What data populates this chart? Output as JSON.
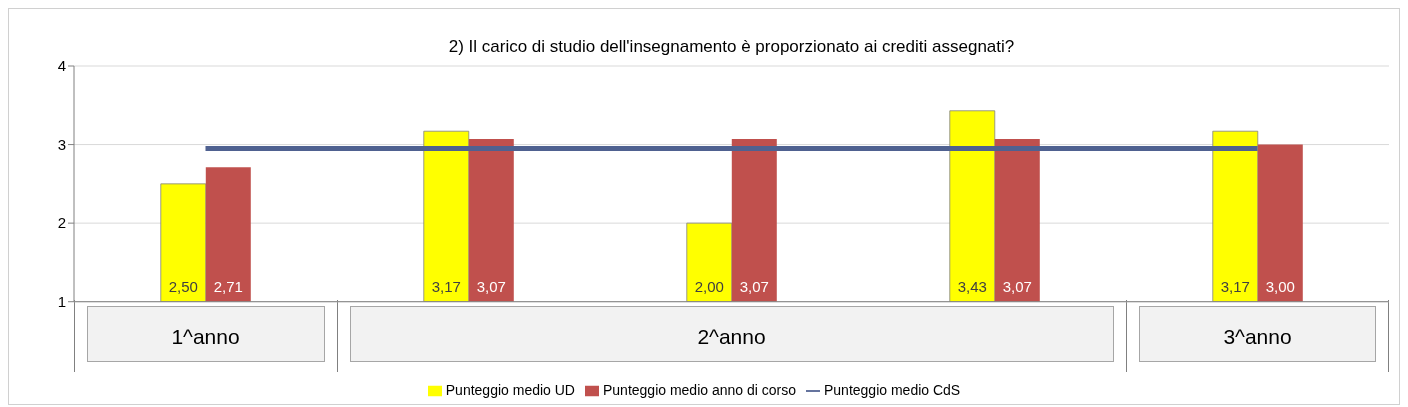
{
  "chart_data": {
    "type": "bar",
    "title": "2) Il carico di studio dell'insegnamento è proporzionato ai crediti assegnati?",
    "categories": [
      "1^anno",
      null,
      "2^anno",
      null,
      "3^anno"
    ],
    "series": [
      {
        "name": "Punteggio medio UD",
        "color": "#ffff00",
        "values": [
          2.5,
          3.17,
          2.0,
          3.43,
          3.17
        ],
        "value_labels": [
          "2,50",
          "3,17",
          "2,00",
          "3,43",
          "3,17"
        ]
      },
      {
        "name": "Punteggio medio anno di corso",
        "color": "#c0504d",
        "values": [
          2.71,
          3.07,
          3.07,
          3.07,
          3.0
        ],
        "value_labels": [
          "2,71",
          "3,07",
          "3,07",
          "3,07",
          "3,00"
        ]
      },
      {
        "name": "Punteggio medio CdS",
        "type": "line",
        "color": "#4f6190",
        "values": [
          2.95,
          2.95,
          2.95,
          2.95,
          2.95
        ]
      }
    ],
    "ylim": [
      1,
      4
    ],
    "yticks": [
      1,
      2,
      3,
      4
    ],
    "grid": "y",
    "legend": "bottom",
    "marker": "none"
  }
}
